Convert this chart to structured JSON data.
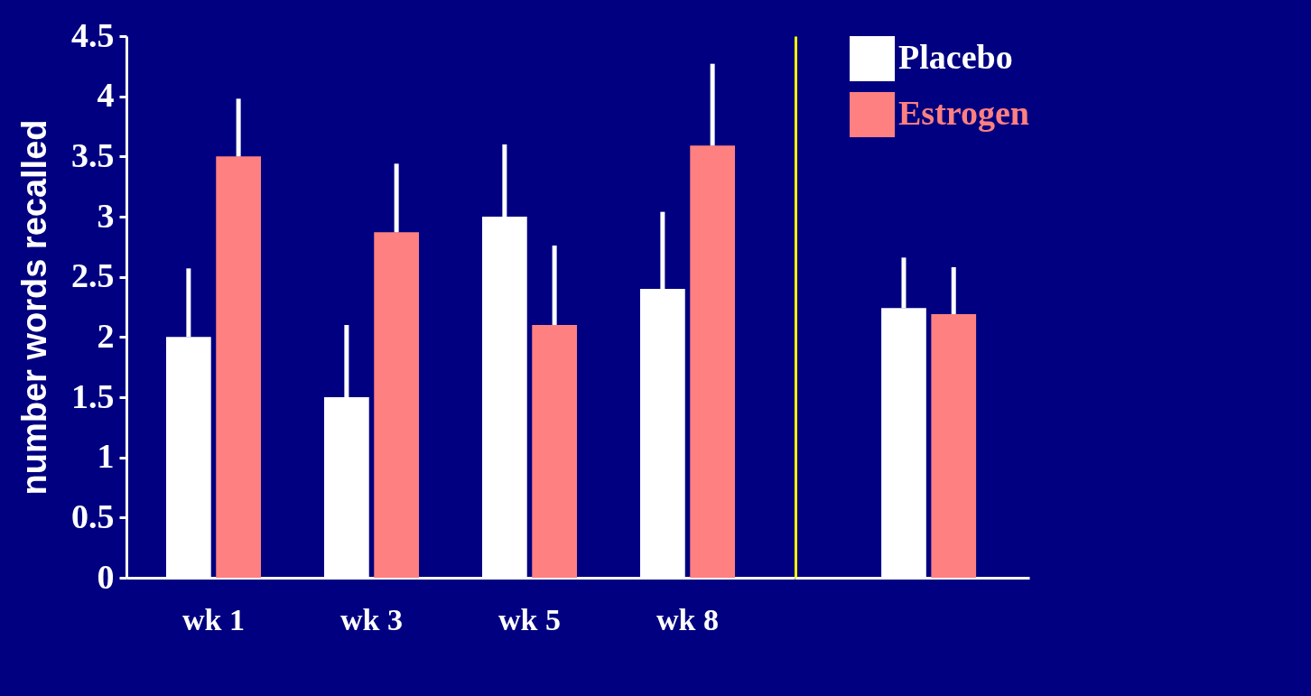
{
  "chart_data": [
    {
      "type": "bar",
      "ylabel": "number words recalled",
      "categories": [
        "wk 1",
        "wk 3",
        "wk 5",
        "wk 8"
      ],
      "series": [
        {
          "color": "#ffffff",
          "values": [
            2.0,
            1.5,
            3.0,
            2.4
          ],
          "errors": [
            [
              2.0,
              2.57
            ],
            [
              1.5,
              2.1
            ],
            [
              3.0,
              3.6
            ],
            [
              2.4,
              3.04
            ]
          ]
        },
        {
          "color": "#ff8080",
          "values": [
            3.5,
            2.87,
            2.1,
            3.59
          ],
          "errors": [
            [
              3.5,
              3.98
            ],
            [
              2.87,
              3.44
            ],
            [
              2.1,
              2.76
            ],
            [
              3.59,
              4.27
            ]
          ]
        }
      ],
      "ylim": [
        0,
        4.5
      ],
      "yticks": [
        0,
        0.5,
        1,
        1.5,
        2,
        2.5,
        3,
        3.5,
        4,
        4.5
      ],
      "grid": false
    },
    {
      "type": "bar",
      "categories": [
        null
      ],
      "series": [
        {
          "name": "Placebo",
          "color": "#ffffff",
          "values": [
            2.24
          ],
          "errors": [
            [
              2.24,
              2.66
            ]
          ]
        },
        {
          "name": "Estrogen",
          "color": "#ff8080",
          "values": [
            2.19
          ],
          "errors": [
            [
              2.19,
              2.58
            ]
          ]
        }
      ],
      "ylim": [
        0,
        4.5
      ],
      "yticks": [
        0,
        0.5,
        1,
        1.5,
        2,
        2.5,
        3,
        3.5,
        4,
        4.5
      ],
      "grid": false,
      "tick_labels": false,
      "legend": "top right"
    }
  ]
}
